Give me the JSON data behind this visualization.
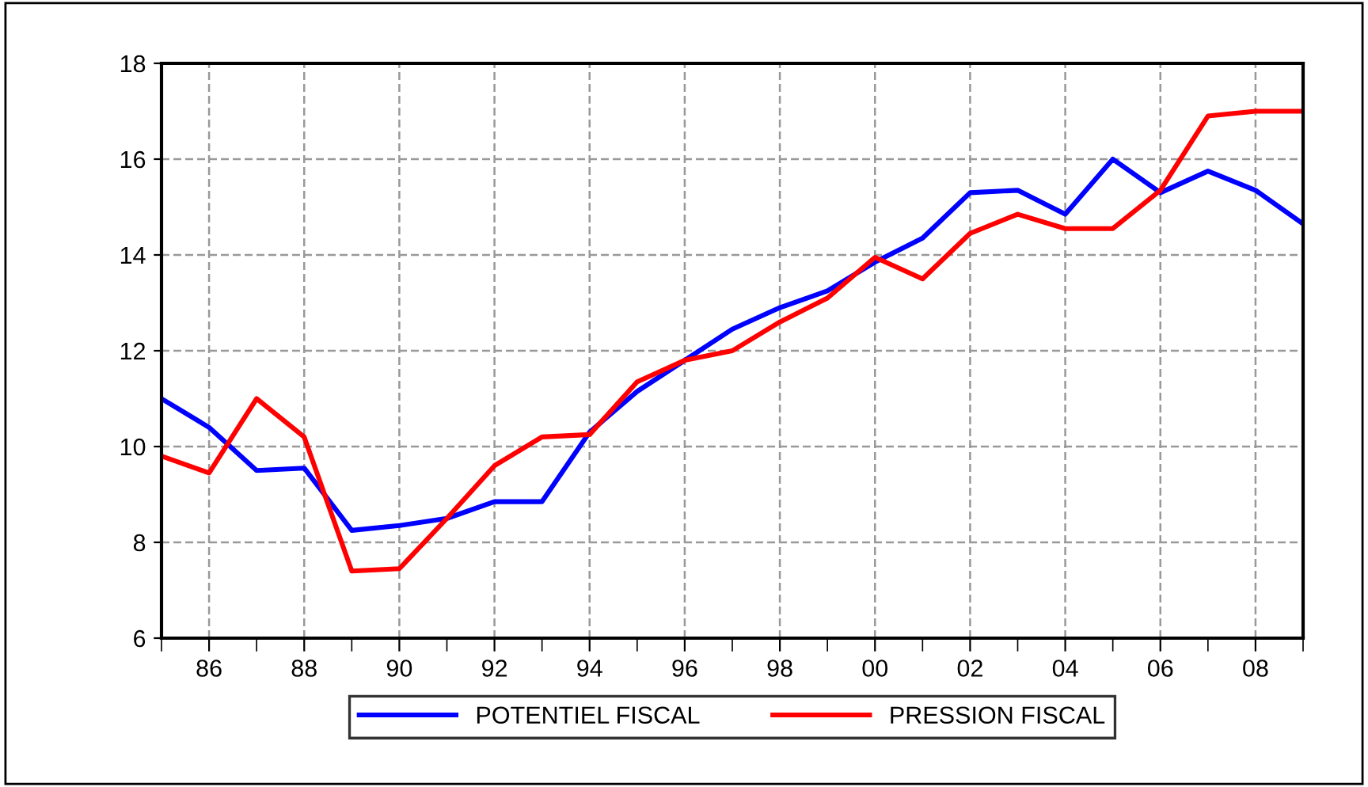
{
  "chart_data": {
    "type": "line",
    "x": [
      1985,
      1986,
      1987,
      1988,
      1989,
      1990,
      1991,
      1992,
      1993,
      1994,
      1995,
      1996,
      1997,
      1998,
      1999,
      2000,
      2001,
      2002,
      2003,
      2004,
      2005,
      2006,
      2007,
      2008,
      2009
    ],
    "series": [
      {
        "name": "POTENTIEL FISCAL",
        "color": "#0000ff",
        "values": [
          11.0,
          10.4,
          9.5,
          9.55,
          8.25,
          8.35,
          8.5,
          8.85,
          8.85,
          10.3,
          11.15,
          11.8,
          12.45,
          12.9,
          13.25,
          13.85,
          14.35,
          15.3,
          15.35,
          14.85,
          16.0,
          15.3,
          15.75,
          15.35,
          14.65
        ]
      },
      {
        "name": "PRESSION FISCAL",
        "color": "#ff0000",
        "values": [
          9.8,
          9.45,
          11.0,
          10.2,
          7.4,
          7.45,
          8.5,
          9.6,
          10.2,
          10.25,
          11.35,
          11.8,
          12.0,
          12.6,
          13.1,
          13.95,
          13.5,
          14.45,
          14.85,
          14.55,
          14.55,
          15.35,
          16.9,
          17.0,
          17.0
        ]
      }
    ],
    "xlim": [
      1985,
      2009
    ],
    "xticks": [
      {
        "value": 1985,
        "label": null
      },
      {
        "value": 1986,
        "label": "86"
      },
      {
        "value": 1987,
        "label": null
      },
      {
        "value": 1988,
        "label": "88"
      },
      {
        "value": 1989,
        "label": null
      },
      {
        "value": 1990,
        "label": "90"
      },
      {
        "value": 1991,
        "label": null
      },
      {
        "value": 1992,
        "label": "92"
      },
      {
        "value": 1993,
        "label": null
      },
      {
        "value": 1994,
        "label": "94"
      },
      {
        "value": 1995,
        "label": null
      },
      {
        "value": 1996,
        "label": "96"
      },
      {
        "value": 1997,
        "label": null
      },
      {
        "value": 1998,
        "label": "98"
      },
      {
        "value": 1999,
        "label": null
      },
      {
        "value": 2000,
        "label": "00"
      },
      {
        "value": 2001,
        "label": null
      },
      {
        "value": 2002,
        "label": "02"
      },
      {
        "value": 2003,
        "label": null
      },
      {
        "value": 2004,
        "label": "04"
      },
      {
        "value": 2005,
        "label": null
      },
      {
        "value": 2006,
        "label": "06"
      },
      {
        "value": 2007,
        "label": null
      },
      {
        "value": 2008,
        "label": "08"
      },
      {
        "value": 2009,
        "label": null
      }
    ],
    "ylim": [
      6,
      18
    ],
    "yticks": [
      6,
      8,
      10,
      12,
      14,
      16,
      18
    ],
    "grid": true,
    "legend": "bottom",
    "marker": "none",
    "line_style": "solid"
  }
}
